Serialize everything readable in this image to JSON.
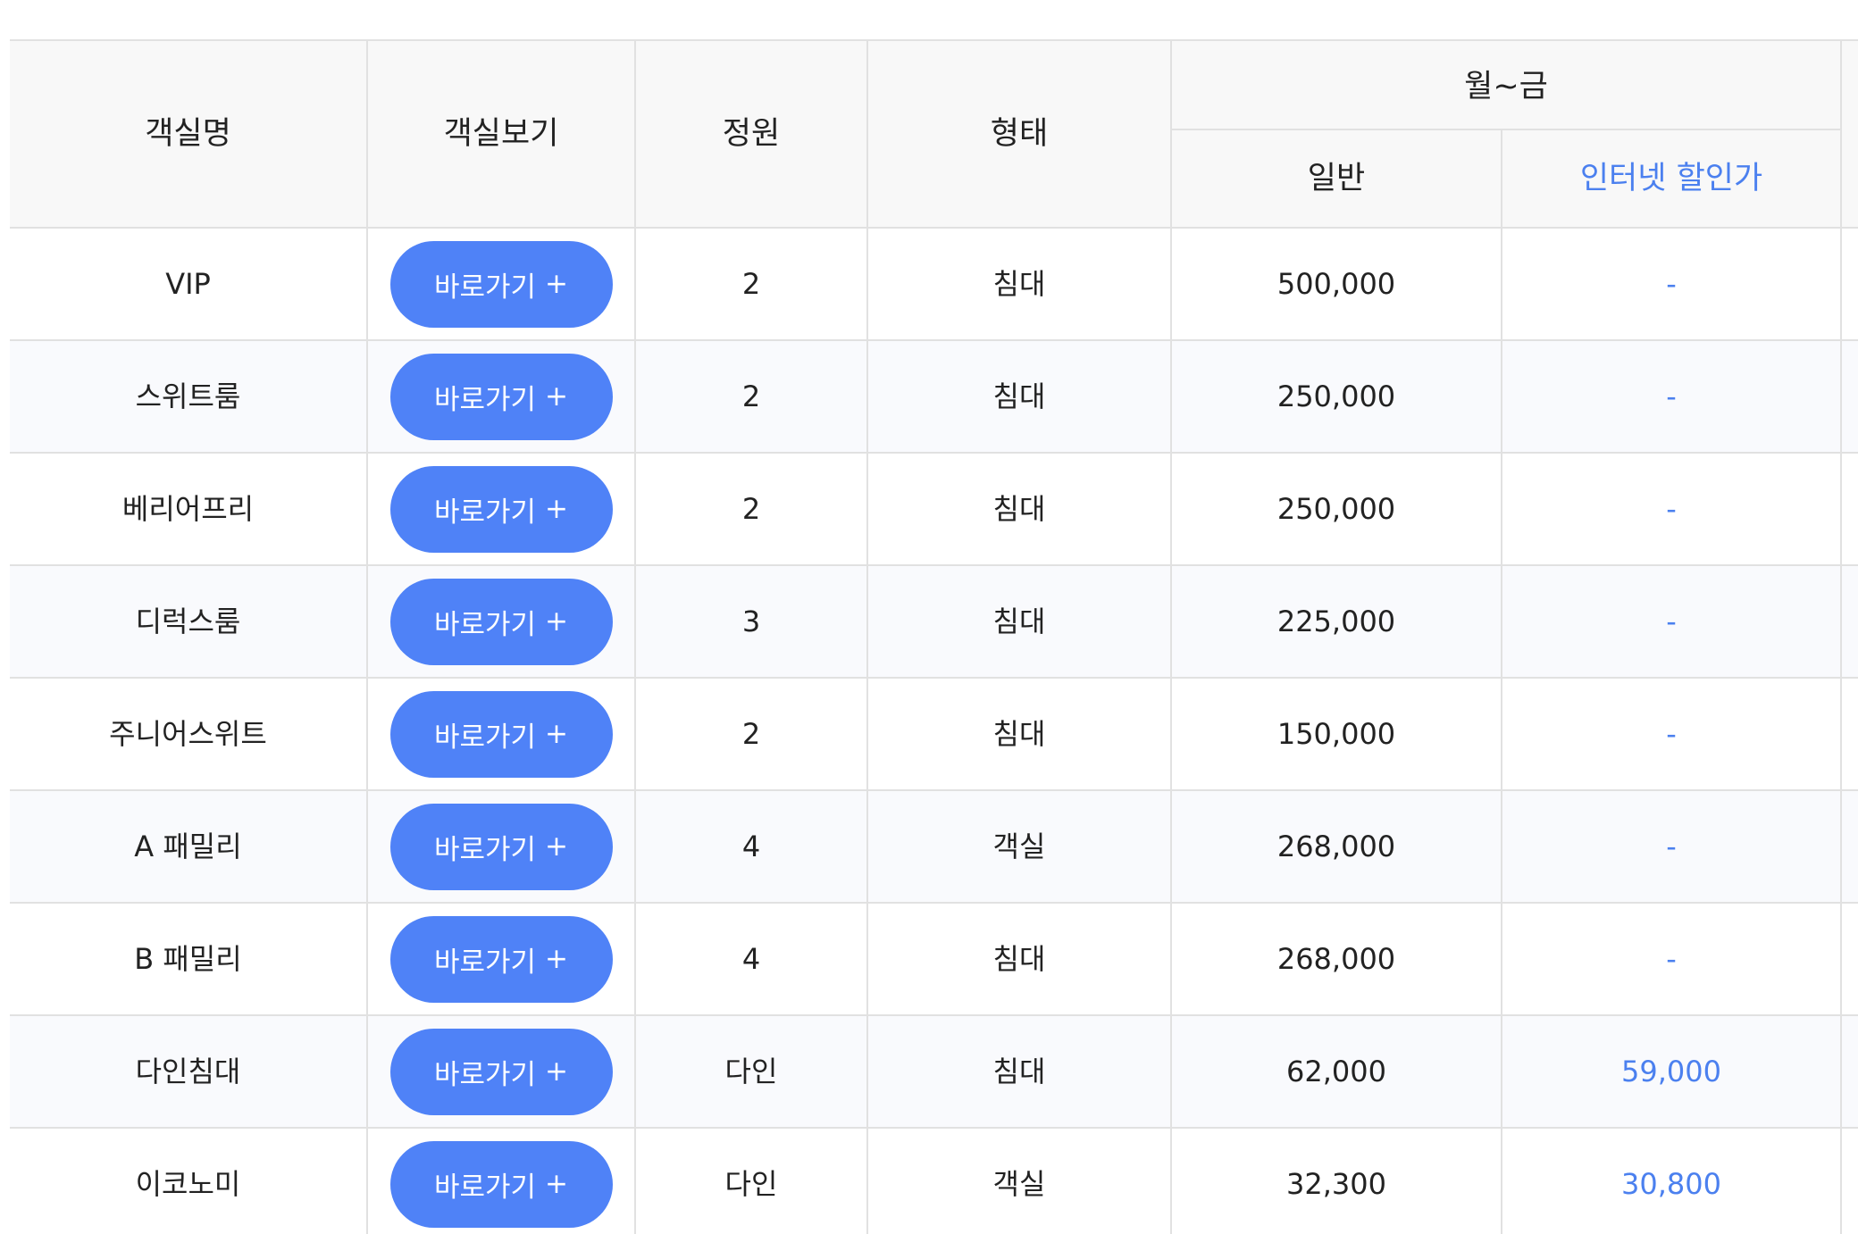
{
  "table": {
    "headers": {
      "room_name": "객실명",
      "room_view": "객실보기",
      "capacity": "정원",
      "type": "형태",
      "period": "월~금",
      "regular": "일반",
      "internet_discount": "인터넷 할인가"
    },
    "button_label": "바로가기",
    "button_plus": "+",
    "rows": [
      {
        "name": "VIP",
        "capacity": "2",
        "type": "침대",
        "regular": "500,000",
        "internet": "-"
      },
      {
        "name": "스위트룸",
        "capacity": "2",
        "type": "침대",
        "regular": "250,000",
        "internet": "-"
      },
      {
        "name": "베리어프리",
        "capacity": "2",
        "type": "침대",
        "regular": "250,000",
        "internet": "-"
      },
      {
        "name": "디럭스룸",
        "capacity": "3",
        "type": "침대",
        "regular": "225,000",
        "internet": "-"
      },
      {
        "name": "주니어스위트",
        "capacity": "2",
        "type": "침대",
        "regular": "150,000",
        "internet": "-"
      },
      {
        "name": "A 패밀리",
        "capacity": "4",
        "type": "객실",
        "regular": "268,000",
        "internet": "-"
      },
      {
        "name": "B 패밀리",
        "capacity": "4",
        "type": "침대",
        "regular": "268,000",
        "internet": "-"
      },
      {
        "name": "다인침대",
        "capacity": "다인",
        "type": "침대",
        "regular": "62,000",
        "internet": "59,000"
      },
      {
        "name": "이코노미",
        "capacity": "다인",
        "type": "객실",
        "regular": "32,300",
        "internet": "30,800"
      }
    ]
  },
  "colors": {
    "accent": "#4f82f7",
    "accent_text": "#4b80ef",
    "header_bg": "#f8f8f8",
    "row_alt_bg": "#f9fafd",
    "border": "#e1e1e1"
  }
}
